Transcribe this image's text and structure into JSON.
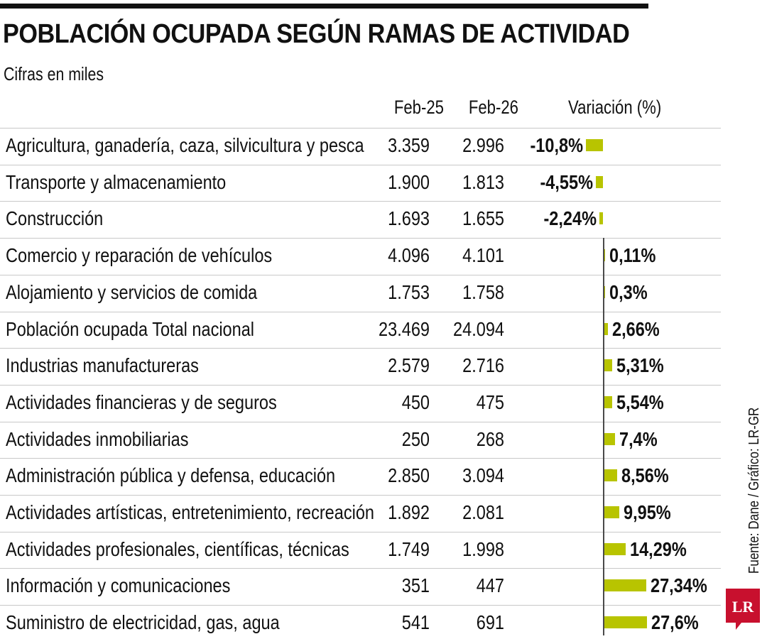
{
  "title": "POBLACIÓN OCUPADA SEGÚN RAMAS DE ACTIVIDAD",
  "subtitle": "Cifras en miles",
  "source": "Fuente: Dane / Gráfico: LR-GR",
  "logo_text": "LR",
  "colors": {
    "bar": "#b8c400",
    "logo": "#c8102e",
    "text": "#111111"
  },
  "chart_data": {
    "type": "table",
    "columns": [
      "Feb-25",
      "Feb-26",
      "Variación (%)"
    ],
    "rows": [
      {
        "label": "Agricultura, ganadería, caza, silvicultura y pesca",
        "feb25": "3.359",
        "feb26": "2.996",
        "variation_label": "-10,8%",
        "variation": -10.8
      },
      {
        "label": "Transporte y almacenamiento",
        "feb25": "1.900",
        "feb26": "1.813",
        "variation_label": "-4,55%",
        "variation": -4.55
      },
      {
        "label": "Construcción",
        "feb25": "1.693",
        "feb26": "1.655",
        "variation_label": "-2,24%",
        "variation": -2.24
      },
      {
        "label": "Comercio y reparación de vehículos",
        "feb25": "4.096",
        "feb26": "4.101",
        "variation_label": "0,11%",
        "variation": 0.11
      },
      {
        "label": "Alojamiento y servicios de comida",
        "feb25": "1.753",
        "feb26": "1.758",
        "variation_label": "0,3%",
        "variation": 0.3
      },
      {
        "label": "Población ocupada Total nacional",
        "feb25": "23.469",
        "feb26": "24.094",
        "variation_label": "2,66%",
        "variation": 2.66
      },
      {
        "label": "Industrias manufactureras",
        "feb25": "2.579",
        "feb26": "2.716",
        "variation_label": "5,31%",
        "variation": 5.31
      },
      {
        "label": "Actividades financieras y de seguros",
        "feb25": "450",
        "feb26": "475",
        "variation_label": "5,54%",
        "variation": 5.54
      },
      {
        "label": "Actividades inmobiliarias",
        "feb25": "250",
        "feb26": "268",
        "variation_label": "7,4%",
        "variation": 7.4
      },
      {
        "label": "Administración pública y defensa, educación",
        "feb25": "2.850",
        "feb26": "3.094",
        "variation_label": "8,56%",
        "variation": 8.56
      },
      {
        "label": "Actividades artísticas, entretenimiento, recreación",
        "feb25": "1.892",
        "feb26": "2.081",
        "variation_label": "9,95%",
        "variation": 9.95
      },
      {
        "label": "Actividades profesionales, científicas, técnicas",
        "feb25": "1.749",
        "feb26": "1.998",
        "variation_label": "14,29%",
        "variation": 14.29
      },
      {
        "label": "Información y comunicaciones",
        "feb25": "351",
        "feb26": "447",
        "variation_label": "27,34%",
        "variation": 27.34
      },
      {
        "label": "Suministro de electricidad, gas, agua",
        "feb25": "541",
        "feb26": "691",
        "variation_label": "27,6%",
        "variation": 27.6
      }
    ]
  }
}
